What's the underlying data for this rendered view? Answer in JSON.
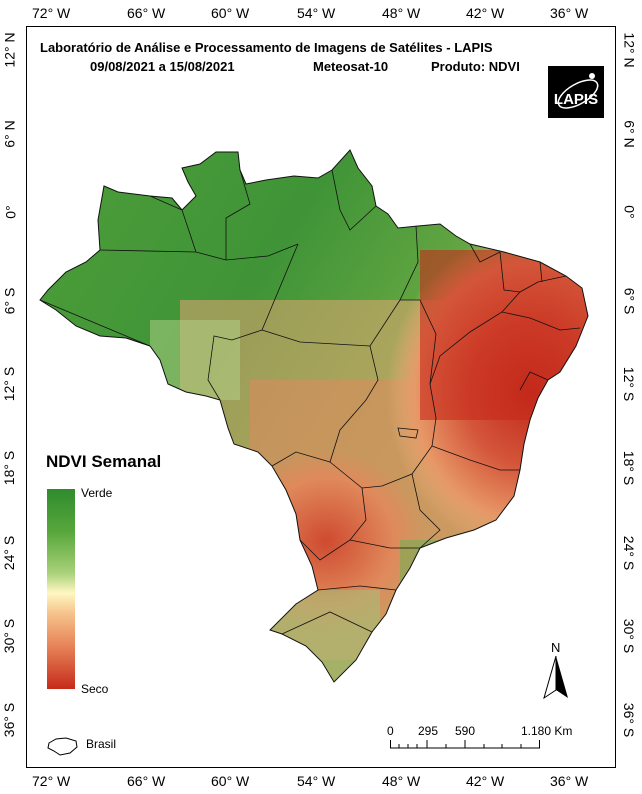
{
  "header": {
    "title_line1": "Laboratório de Análise e Processamento de Imagens de Satélites - LAPIS",
    "period": "09/08/2021  a  15/08/2021",
    "satellite": "Meteosat-10",
    "product": "Produto: NDVI"
  },
  "logo": {
    "text": "LAPIS"
  },
  "longitude_ticks": [
    "72° W",
    "66° W",
    "60° W",
    "54° W",
    "48° W",
    "42° W",
    "36° W"
  ],
  "latitude_ticks": [
    "12° N",
    "6° N",
    "0°",
    "6° S",
    "12° S",
    "18° S",
    "24° S",
    "30° S",
    "36° S"
  ],
  "legend": {
    "title": "NDVI Semanal",
    "top_label": "Verde",
    "bottom_label": "Seco",
    "region_label": "Brasil"
  },
  "north_arrow": {
    "label": "N"
  },
  "scale": {
    "labels": [
      "0",
      "295",
      "590",
      "1.180 Km"
    ]
  },
  "colors": {
    "green": "#2e8b2e",
    "yellow": "#fff7c2",
    "red": "#c62a1b"
  }
}
